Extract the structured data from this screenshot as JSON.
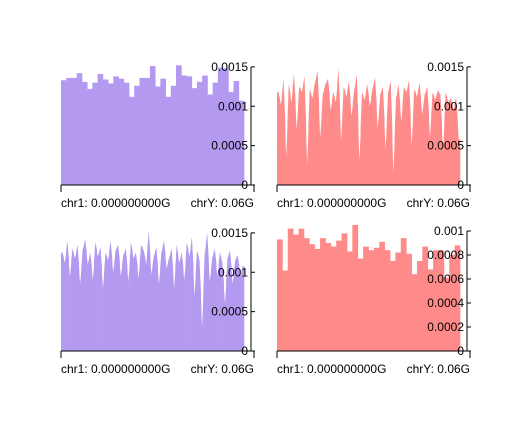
{
  "colors": {
    "purple": "#b39af0",
    "red": "#ff8a8a",
    "axis": "#000000"
  },
  "chart_data": [
    {
      "type": "area",
      "color": "#b39af0",
      "style": "blocks",
      "ylim": [
        0,
        0.0016
      ],
      "yticks": [
        "0",
        "0.0005",
        "0.001",
        "0.0015"
      ],
      "ytick_values": [
        0,
        0.0005,
        0.001,
        0.0015
      ],
      "xtick_left": "chr1: 0.000000000G",
      "xtick_right": "chrY: 0.06G",
      "values": [
        0.00133,
        0.00136,
        0.00136,
        0.00142,
        0.00131,
        0.00122,
        0.0013,
        0.00141,
        0.00134,
        0.00129,
        0.00138,
        0.00135,
        0.0013,
        0.00112,
        0.00126,
        0.00136,
        0.00136,
        0.00151,
        0.00125,
        0.00135,
        0.00112,
        0.00126,
        0.00152,
        0.00139,
        0.00138,
        0.00123,
        0.00131,
        0.00139,
        0.00115,
        0.0013,
        0.00149,
        0.00148,
        0.00118,
        0.00132,
        0.00107
      ]
    },
    {
      "type": "area",
      "color": "#ff8a8a",
      "style": "spiky",
      "ylim": [
        0,
        0.0016
      ],
      "yticks": [
        "0",
        "0.0005",
        "0.001",
        "0.0015"
      ],
      "ytick_values": [
        0,
        0.0005,
        0.001,
        0.0015
      ],
      "xtick_left": "chr1: 0.000000000G",
      "xtick_right": "chrY: 0.06G",
      "values": [
        0.00118,
        0.00102,
        0.00135,
        0.00035,
        0.00128,
        0.00105,
        0.00142,
        0.0007,
        0.00125,
        0.00118,
        0.00138,
        0.00025,
        0.00122,
        0.0011,
        0.0013,
        0.00145,
        0.0006,
        0.00115,
        0.00128,
        0.00135,
        0.00095,
        0.00118,
        0.00105,
        0.00148,
        0.00055,
        0.00125,
        0.00112,
        0.00132,
        0.00088,
        0.0012,
        0.0014,
        0.0003,
        0.00118,
        0.00108,
        0.00128,
        0.001,
        0.00122,
        0.00136,
        0.00072,
        0.00115,
        0.00125,
        0.00045,
        0.00118,
        0.00132,
        0.00015,
        0.0011,
        0.00128,
        0.0008,
        0.00124,
        0.00118,
        0.00133,
        0.0005,
        0.00122,
        0.00112,
        0.0013,
        0.0009,
        0.00115,
        0.00125,
        0.0006,
        0.00118,
        0.00108,
        0.0012,
        0.00115,
        0.00042,
        0.00118,
        0.00105,
        0.0011,
        0.00095,
        0.00112,
        0.00058
      ]
    },
    {
      "type": "area",
      "color": "#b39af0",
      "style": "spiky",
      "ylim": [
        0,
        0.0016
      ],
      "yticks": [
        "0",
        "0.0005",
        "0.001",
        "0.0015"
      ],
      "ytick_values": [
        0,
        0.0005,
        0.001,
        0.0015
      ],
      "xtick_left": "chr1: 0.000000000G",
      "xtick_right": "chrY: 0.06G",
      "values": [
        0.00125,
        0.00112,
        0.0014,
        0.00095,
        0.0013,
        0.00118,
        0.00135,
        0.00085,
        0.00128,
        0.00142,
        0.0011,
        0.00125,
        0.0009,
        0.00138,
        0.0012,
        0.00132,
        0.0008,
        0.00125,
        0.00115,
        0.0014,
        0.001,
        0.00128,
        0.00135,
        0.00095,
        0.00122,
        0.0013,
        0.00088,
        0.00138,
        0.00118,
        0.00125,
        0.00092,
        0.00135,
        0.00128,
        0.0011,
        0.00152,
        0.00098,
        0.0012,
        0.00132,
        0.00085,
        0.00125,
        0.0014,
        0.00105,
        0.00118,
        0.0013,
        0.0008,
        0.00135,
        0.00112,
        0.00125,
        0.0009,
        0.00138,
        0.0012,
        0.00145,
        0.0007,
        0.00128,
        0.00115,
        0.0003,
        0.00122,
        0.0015,
        0.00088,
        0.00118,
        0.0013,
        0.00095,
        0.00125,
        0.00112,
        0.0006,
        0.00118,
        0.00128,
        0.00085,
        0.00115,
        0.00122,
        0.00095,
        0.00108
      ]
    },
    {
      "type": "area",
      "color": "#ff8a8a",
      "style": "blocks",
      "ylim": [
        0,
        0.00105
      ],
      "yticks": [
        "0",
        "0.0002",
        "0.0004",
        "0.0006",
        "0.0008",
        "0.001"
      ],
      "ytick_values": [
        0,
        0.0002,
        0.0004,
        0.0006,
        0.0008,
        0.001
      ],
      "xtick_left": "chr1: 0.000000000G",
      "xtick_right": "chrY: 0.06G",
      "values": [
        0.00093,
        0.00067,
        0.00102,
        0.00097,
        0.00102,
        0.00094,
        0.00089,
        0.00085,
        0.00094,
        0.0009,
        0.00087,
        0.00092,
        0.00098,
        0.00083,
        0.00105,
        0.00077,
        0.00087,
        0.00084,
        0.00086,
        0.00091,
        0.00084,
        0.00075,
        0.00082,
        0.00094,
        0.00081,
        0.00064,
        0.00075,
        0.00087,
        0.00068,
        0.00084,
        0.00084,
        0.00061,
        0.0008,
        0.00088
      ]
    }
  ]
}
